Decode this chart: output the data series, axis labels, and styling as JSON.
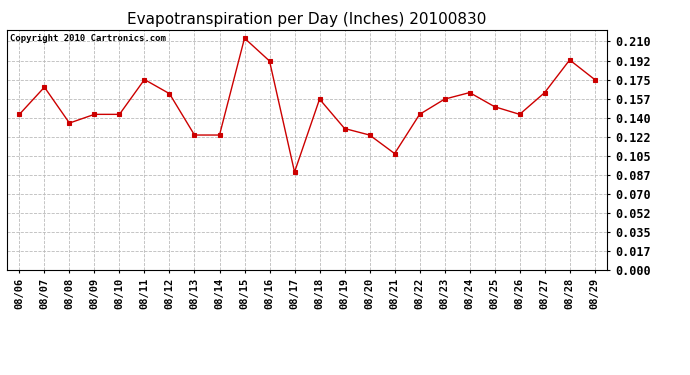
{
  "title": "Evapotranspiration per Day (Inches) 20100830",
  "copyright_text": "Copyright 2010 Cartronics.com",
  "dates": [
    "08/06",
    "08/07",
    "08/08",
    "08/09",
    "08/10",
    "08/11",
    "08/12",
    "08/13",
    "08/14",
    "08/15",
    "08/16",
    "08/17",
    "08/18",
    "08/19",
    "08/20",
    "08/21",
    "08/22",
    "08/23",
    "08/24",
    "08/25",
    "08/26",
    "08/27",
    "08/28",
    "08/29"
  ],
  "values": [
    0.143,
    0.168,
    0.135,
    0.143,
    0.143,
    0.175,
    0.162,
    0.124,
    0.124,
    0.213,
    0.192,
    0.09,
    0.157,
    0.13,
    0.124,
    0.107,
    0.143,
    0.157,
    0.163,
    0.15,
    0.143,
    0.163,
    0.193,
    0.175
  ],
  "line_color": "#cc0000",
  "marker": "s",
  "marker_size": 3,
  "bg_color": "#ffffff",
  "plot_bg_color": "#ffffff",
  "grid_color": "#bbbbbb",
  "y_ticks": [
    0.0,
    0.017,
    0.035,
    0.052,
    0.07,
    0.087,
    0.105,
    0.122,
    0.14,
    0.157,
    0.175,
    0.192,
    0.21
  ],
  "ylim": [
    0.0,
    0.2205
  ],
  "title_fontsize": 11,
  "copyright_fontsize": 6.5,
  "tick_fontsize": 7.5,
  "ytick_fontsize": 8.5
}
